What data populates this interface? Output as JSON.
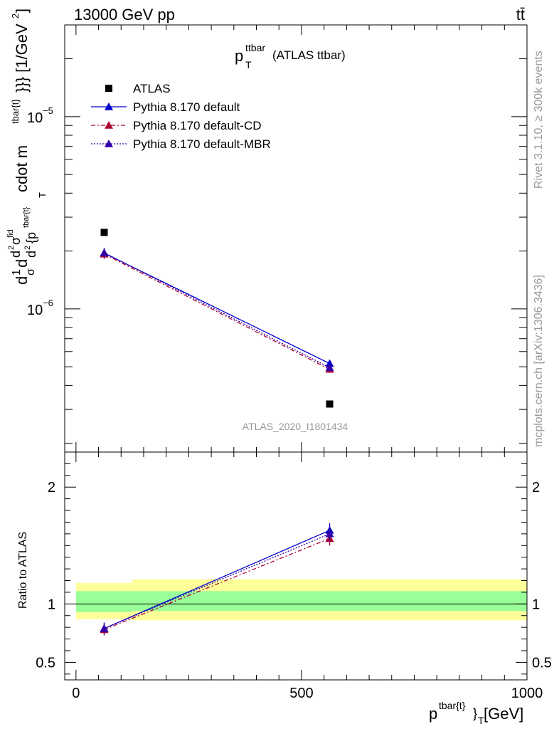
{
  "header": {
    "energy_label": "13000 GeV pp",
    "process_label": "tt̄"
  },
  "side_labels": {
    "rivet": "Rivet 3.1.10, ≥ 300k events",
    "mcplots": "mcplots.cern.ch [arXiv:1306.3436]"
  },
  "chart_data": {
    "type": "line",
    "title_main": "p",
    "title_sup": "ttbar",
    "title_sub": "T",
    "title_rest": "(ATLAS ttbar)",
    "analysis_id": "ATLAS_2020_I1801434",
    "ylabel": {
      "d1": "d",
      "one": "1",
      "sigma": "σ",
      "d2": "d",
      "d2sigma": "d",
      "sup2": "2",
      "sigmafid": "σ",
      "fid": "fid",
      "den_d": "d",
      "den_sup": "2",
      "den_p": "{p",
      "den_psup": "tbar{t}",
      "cdot": "cdot m",
      "cdot_sup": "tbar{t}",
      "unit": "}}} [1/GeV",
      "unit_sup": "2",
      "unit_close": "]",
      "t_sub": "T"
    },
    "xlabel": {
      "main": "p",
      "sup": "tbar{t}",
      "close": "}",
      "sub": "T",
      "unit": " [GeV]"
    },
    "ratio_ylabel": "Ratio to ATLAS",
    "xlim": [
      -25,
      1000
    ],
    "ylim": [
      1.8e-07,
      3e-05
    ],
    "ratio_ylim": [
      0.35,
      2.3
    ],
    "x_ticks": [
      0,
      500,
      1000
    ],
    "x_tick_labels": [
      "0",
      "500",
      "1000"
    ],
    "y_tick_labels": [
      {
        "value": 1e-05,
        "base": "10",
        "exp": "−5"
      },
      {
        "value": 1e-06,
        "base": "10",
        "exp": "−6"
      }
    ],
    "ratio_ticks": [
      0.5,
      1,
      2
    ],
    "ratio_tick_labels": [
      "0.5",
      "1",
      "2"
    ],
    "bins": [
      {
        "low": 0,
        "high": 125,
        "x": 62.5
      },
      {
        "low": 125,
        "high": 1000,
        "x": 562.5
      }
    ],
    "data": {
      "name": "ATLAS",
      "values": [
        2.5e-06,
        3.2e-07
      ]
    },
    "band_yellow": [
      [
        0.87,
        1.18
      ],
      [
        0.86,
        1.21
      ]
    ],
    "band_green": [
      [
        0.93,
        1.11
      ],
      [
        0.94,
        1.11
      ]
    ],
    "series": [
      {
        "name": "Pythia 8.170 default",
        "color": "#0000cc",
        "dash": "",
        "values": [
          1.95e-06,
          5.2e-07
        ],
        "errors": [
          1.2e-07,
          3e-09
        ],
        "ratio": [
          0.79,
          1.63
        ],
        "ratio_err": [
          0.05,
          0.06
        ]
      },
      {
        "name": "Pythia 8.170 default-CD",
        "color": "#aa0033",
        "dash": "6,3,2,3",
        "values": [
          1.93e-06,
          4.85e-07
        ],
        "errors": [
          1.1e-07,
          3e-09
        ],
        "ratio": [
          0.78,
          1.56
        ],
        "ratio_err": [
          0.05,
          0.06
        ]
      },
      {
        "name": "Pythia 8.170 default-MBR",
        "color": "#3300aa",
        "dash": "2,2",
        "values": [
          1.96e-06,
          4.95e-07
        ],
        "errors": [
          1.2e-07,
          3e-09
        ],
        "ratio": [
          0.79,
          1.6
        ],
        "ratio_err": [
          0.05,
          0.06
        ]
      }
    ],
    "legend_position": "top-left"
  },
  "colors": {
    "yellow_band": "#ffff99",
    "green_band": "#99ff99",
    "axis": "#000000",
    "watermark": "#999999"
  }
}
